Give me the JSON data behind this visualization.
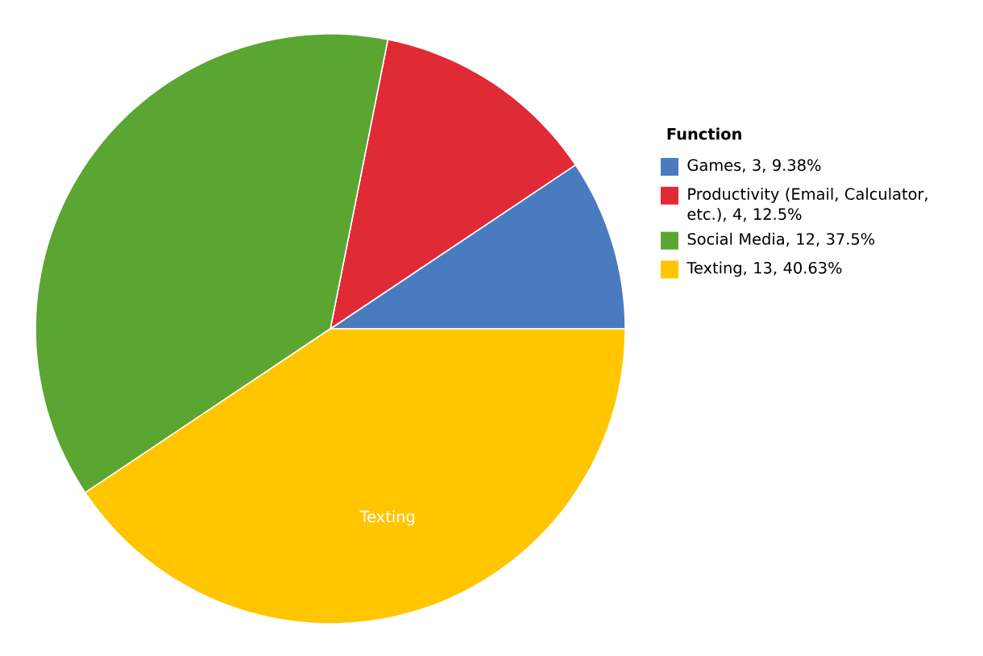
{
  "chart_data": {
    "type": "pie",
    "categories": [
      "Games, 3, 9.38%",
      "Productivity (Email, Calculator, etc.), 4, 12.5%",
      "Social Media, 12, 37.5%",
      "Texting, 13, 40.63%"
    ],
    "values": [
      3,
      4,
      12,
      13
    ],
    "colors": [
      "#4a7bc0",
      "#e02a36",
      "#5ba633",
      "#ffc600"
    ],
    "legend": "right",
    "legend_title": "Function",
    "annotations": [
      "Texting"
    ]
  }
}
